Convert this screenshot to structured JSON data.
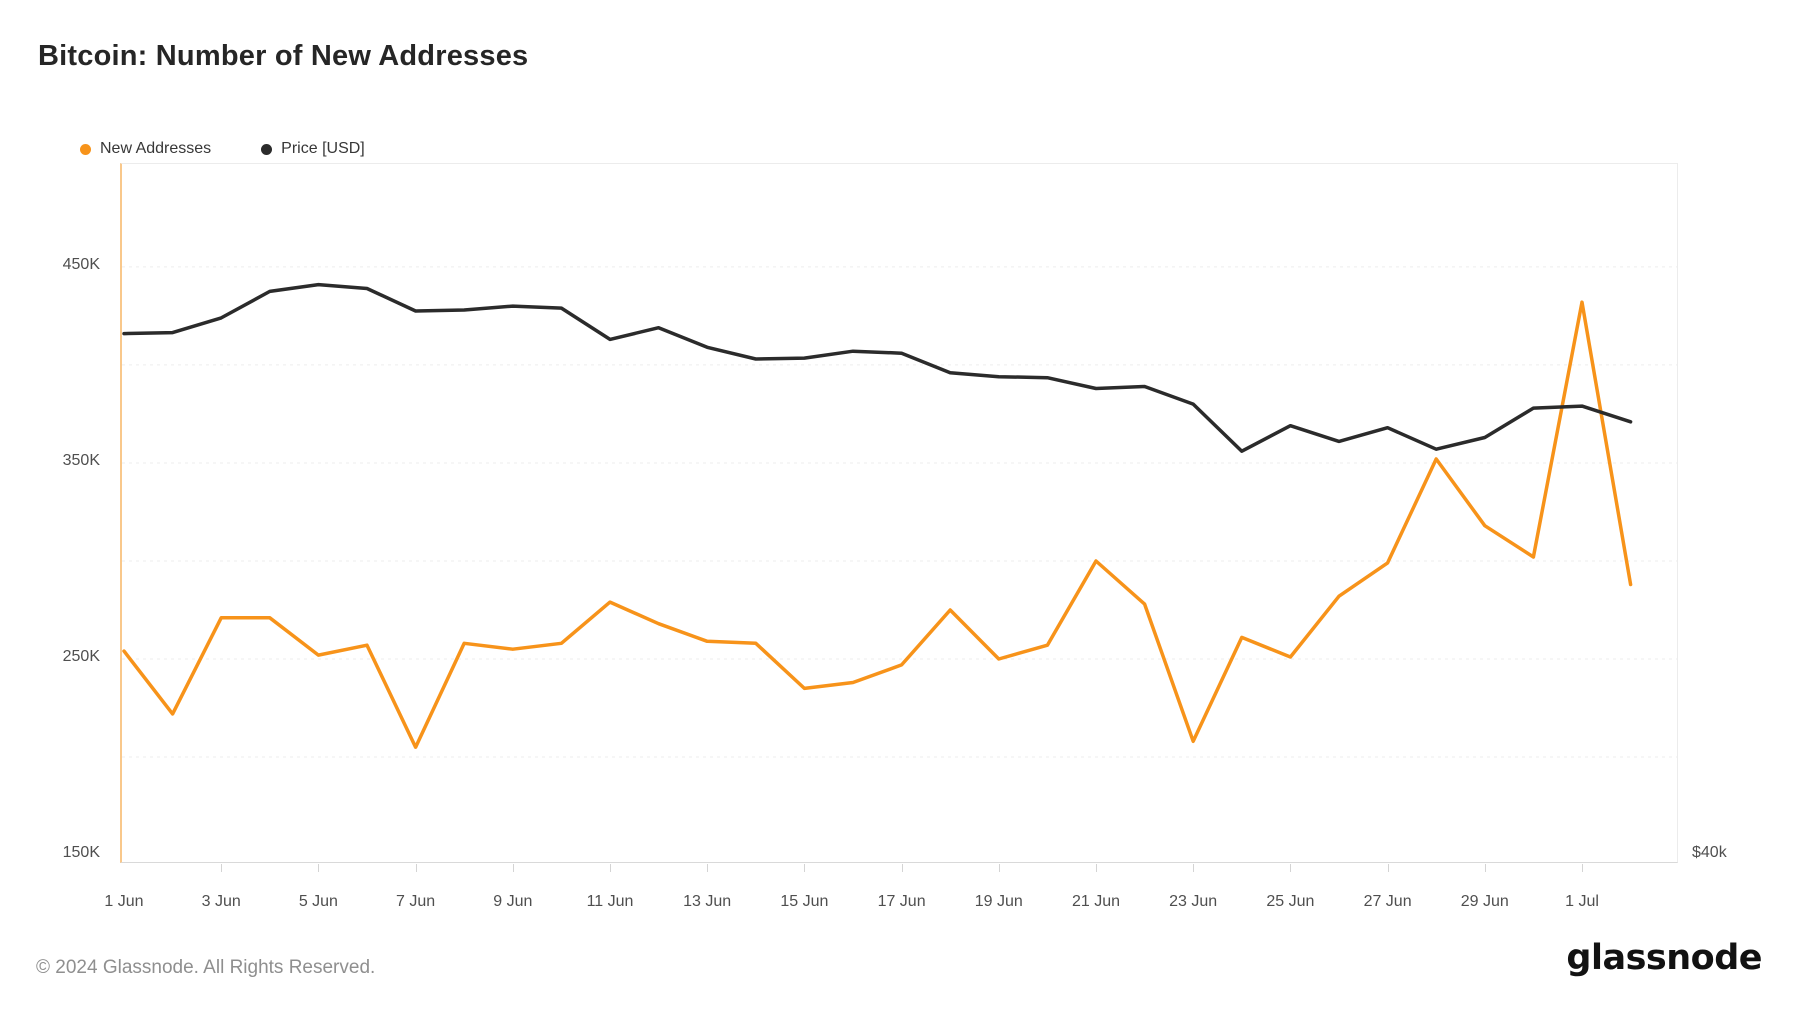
{
  "page": {
    "title": "Bitcoin: Number of New Addresses",
    "footer_copyright": "© 2024 Glassnode. All Rights Reserved.",
    "brand_logo": "glassnode"
  },
  "legend": [
    {
      "label": "New Addresses",
      "color": "#F7931A"
    },
    {
      "label": "Price [USD]",
      "color": "#2B2B2B"
    }
  ],
  "chart_data": {
    "type": "line",
    "title": "Bitcoin: Number of New Addresses",
    "x": [
      "1 Jun",
      "2 Jun",
      "3 Jun",
      "4 Jun",
      "5 Jun",
      "6 Jun",
      "7 Jun",
      "8 Jun",
      "9 Jun",
      "10 Jun",
      "11 Jun",
      "12 Jun",
      "13 Jun",
      "14 Jun",
      "15 Jun",
      "16 Jun",
      "17 Jun",
      "18 Jun",
      "19 Jun",
      "20 Jun",
      "21 Jun",
      "22 Jun",
      "23 Jun",
      "24 Jun",
      "25 Jun",
      "26 Jun",
      "27 Jun",
      "28 Jun",
      "29 Jun",
      "30 Jun",
      "1 Jul",
      "2 Jul"
    ],
    "series": [
      {
        "name": "New Addresses",
        "axis": "left",
        "color": "#F7931A",
        "unit": "thousands of addresses",
        "values": [
          254,
          222,
          271,
          271,
          252,
          257,
          205,
          258,
          255,
          258,
          279,
          268,
          259,
          258,
          235,
          238,
          247,
          275,
          250,
          257,
          300,
          278,
          208,
          261,
          251,
          282,
          299,
          352,
          318,
          302,
          432,
          288
        ]
      },
      {
        "name": "Price [USD]",
        "axis": "right",
        "color": "#2B2B2B",
        "unit": "thousands of USD",
        "values": [
          66.6,
          66.65,
          67.4,
          68.75,
          69.1,
          68.9,
          67.75,
          67.8,
          68.0,
          67.9,
          66.3,
          66.9,
          65.9,
          65.3,
          65.35,
          65.7,
          65.6,
          64.6,
          64.4,
          64.35,
          63.8,
          63.9,
          63.0,
          60.6,
          61.9,
          61.1,
          61.8,
          60.7,
          61.3,
          62.8,
          62.9,
          62.1
        ]
      }
    ],
    "left_axis": {
      "min": 150,
      "max": 502.5,
      "tick_values": [
        150,
        250,
        350,
        450
      ],
      "tick_labels": [
        "150K",
        "250K",
        "350K",
        "450K"
      ],
      "gridline_values": [
        200,
        250,
        300,
        350,
        400,
        450
      ]
    },
    "right_axis": {
      "min": 40,
      "max": 75.25,
      "tick_values": [
        40
      ],
      "tick_labels": [
        "$40k"
      ]
    },
    "x_axis": {
      "tick_labels": [
        "1 Jun",
        "3 Jun",
        "5 Jun",
        "7 Jun",
        "9 Jun",
        "11 Jun",
        "13 Jun",
        "15 Jun",
        "17 Jun",
        "19 Jun",
        "21 Jun",
        "23 Jun",
        "25 Jun",
        "27 Jun",
        "29 Jun",
        "1 Jul"
      ],
      "tick_every_n_points": 2
    },
    "grid": "horizontal, faint dashed",
    "legend_position": "top-left above plot",
    "background": "#ffffff"
  }
}
